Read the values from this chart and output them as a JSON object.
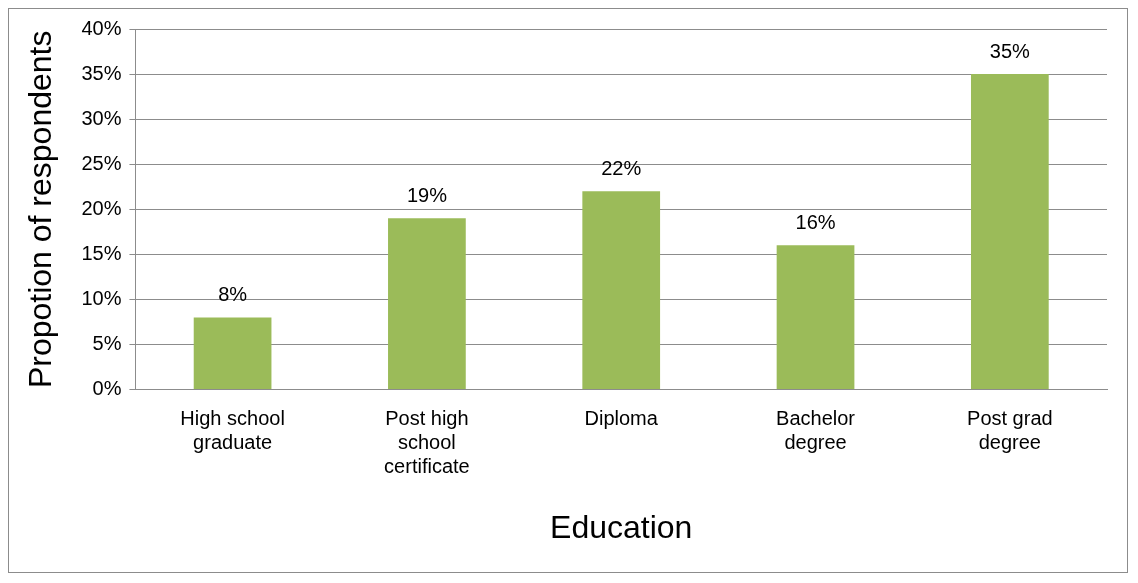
{
  "chart_data": {
    "type": "bar",
    "xlabel": "Education",
    "ylabel": "Propotion of respondents",
    "categories": [
      "High school graduate",
      "Post high school certificate",
      "Diploma",
      "Bachelor degree",
      "Post grad degree"
    ],
    "values": [
      8,
      19,
      22,
      16,
      35
    ],
    "value_labels": [
      "8%",
      "19%",
      "22%",
      "16%",
      "35%"
    ],
    "color": "#9bbb59",
    "ylim": [
      0,
      40
    ],
    "yticks": [
      {
        "value": 0,
        "label": "0%"
      },
      {
        "value": 5,
        "label": "5%"
      },
      {
        "value": 10,
        "label": "10%"
      },
      {
        "value": 15,
        "label": "15%"
      },
      {
        "value": 20,
        "label": "20%"
      },
      {
        "value": 25,
        "label": "25%"
      },
      {
        "value": 30,
        "label": "30%"
      },
      {
        "value": 35,
        "label": "35%"
      },
      {
        "value": 40,
        "label": "40%"
      }
    ],
    "grid": "y",
    "legend": false
  }
}
